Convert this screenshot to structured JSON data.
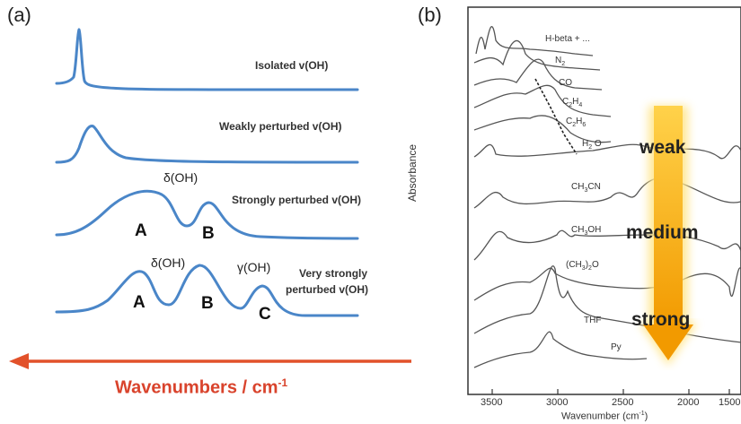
{
  "panel_a": {
    "label": "(a)",
    "traces": [
      {
        "label": "Isolated v(OH)"
      },
      {
        "label": "Weakly perturbed v(OH)"
      },
      {
        "label": "Strongly perturbed v(OH)",
        "mode_label": "δ(OH)",
        "peaks": [
          "A",
          "B"
        ]
      },
      {
        "label_line1": "Very strongly",
        "label_line2": "perturbed v(OH)",
        "mode_labels": [
          "δ(OH)",
          "γ(OH)"
        ],
        "peaks": [
          "A",
          "B",
          "C"
        ]
      }
    ],
    "axis_caption": "Wavenumbers / cm",
    "axis_caption_sup": "-1",
    "colors": {
      "trace": "#4a86c8",
      "arrow": "#e2512a"
    }
  },
  "panel_b": {
    "label": "(b)",
    "ylabel": "Absorbance",
    "xlabel": "Wavenumber (cm",
    "xlabel_sup": "-1",
    "xlabel_end": ")",
    "x_ticks": [
      "3500",
      "3000",
      "2500",
      "2000",
      "1500"
    ],
    "spectra": [
      "H-beta + ...",
      "N",
      "CO",
      "C",
      "C",
      "H",
      "CH",
      "CH",
      "(CH",
      "THF",
      "Py"
    ],
    "spectra_parts": {
      "n2_sub": "2",
      "c2h4_a": "2",
      "c2h4_b": "H",
      "c2h4_c": "4",
      "c2h6_a": "2",
      "c2h6_b": "H",
      "c2h6_c": "6",
      "h2o_sub": "2",
      "h2o_b": "O",
      "ch3cn_sub": "3",
      "ch3cn_b": "CN",
      "ch3oh_sub": "3",
      "ch3oh_b": "OH",
      "ch32o_sub": "3",
      "ch32o_b": ")",
      "ch32o_sub2": "2",
      "ch32o_c": "O"
    },
    "strength_labels": [
      "weak",
      "medium",
      "strong"
    ],
    "colors": {
      "arrow": "#f5a400",
      "glow": "#ffe58a",
      "spectra": "#555555"
    }
  }
}
